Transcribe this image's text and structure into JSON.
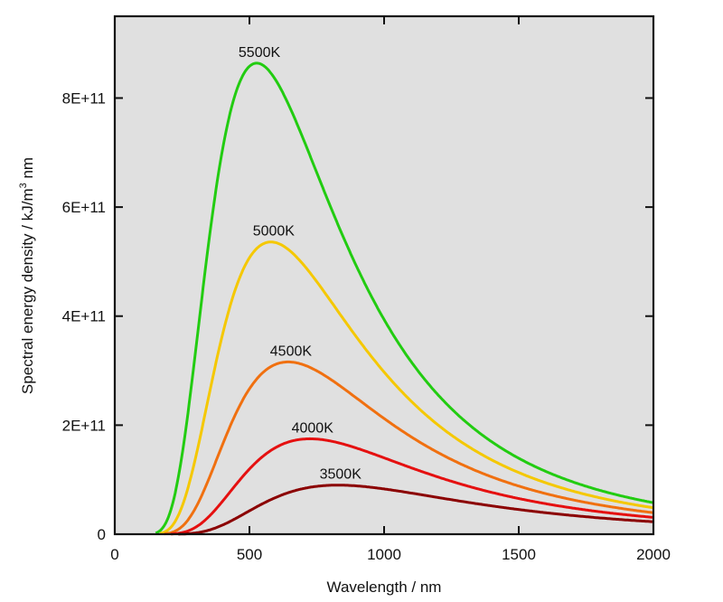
{
  "chart_data": {
    "type": "line",
    "title": "",
    "xlabel": "Wavelength / nm",
    "ylabel_main": "Spectral energy density / kJ/m",
    "ylabel_sup": "3",
    "ylabel_tail": " nm",
    "xlim": [
      0,
      2000
    ],
    "ylim": [
      0,
      950000000000.0
    ],
    "x_ticks": [
      0,
      500,
      1000,
      1500,
      2000
    ],
    "x_tick_labels": [
      "0",
      "500",
      "1000",
      "1500",
      "2000"
    ],
    "y_ticks": [
      0,
      200000000000.0,
      400000000000.0,
      600000000000.0,
      800000000000.0
    ],
    "y_tick_labels": [
      "0",
      "2E+11",
      "4E+11",
      "6E+11",
      "8E+11"
    ],
    "grid": false,
    "background_color": "#e0e0e0",
    "series": [
      {
        "name": "5500K",
        "temperature": 5500,
        "color": "#22cc11",
        "peak_x": 527,
        "peak_y": 864000000000.0
      },
      {
        "name": "5000K",
        "temperature": 5000,
        "color": "#f5c800",
        "peak_x": 580,
        "peak_y": 536000000000.0
      },
      {
        "name": "4500K",
        "temperature": 4500,
        "color": "#f07010",
        "peak_x": 644,
        "peak_y": 316000000000.0
      },
      {
        "name": "4000K",
        "temperature": 4000,
        "color": "#e51010",
        "peak_x": 724,
        "peak_y": 175000000000.0
      },
      {
        "name": "3500K",
        "temperature": 3500,
        "color": "#8b0000",
        "peak_x": 828,
        "peak_y": 90000000000.0
      }
    ]
  }
}
